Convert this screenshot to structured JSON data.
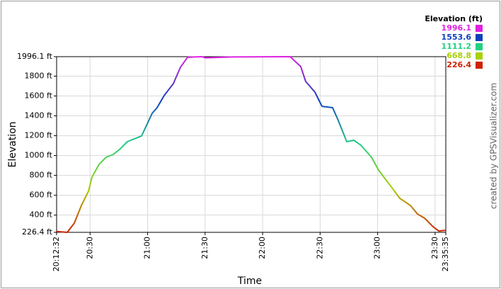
{
  "chart_data": {
    "type": "line",
    "x_label": "Time",
    "y_label": "Elevation",
    "credit": "created by GPSVisualizer.com",
    "legend_title": "Elevation (ft)",
    "color_scale": [
      {
        "value": 1996.1,
        "color": "#e020e0"
      },
      {
        "value": 1553.6,
        "color": "#1040c0"
      },
      {
        "value": 1111.2,
        "color": "#20d080"
      },
      {
        "value": 668.8,
        "color": "#a8d000"
      },
      {
        "value": 226.4,
        "color": "#d02000"
      }
    ],
    "x": [
      "20:12:32",
      "20:18:04",
      "20:21:46",
      "20:25:27",
      "20:29:09",
      "20:31:00",
      "20:34:41",
      "20:38:23",
      "20:42:04",
      "20:45:46",
      "20:49:27",
      "20:53:09",
      "20:56:50",
      "20:59:47",
      "21:02:22",
      "21:04:57",
      "21:08:39",
      "21:13:27",
      "21:17:08",
      "21:20:50",
      "21:28:13",
      "21:30:04",
      "21:44:50",
      "22:14:22",
      "22:19:54",
      "22:22:29",
      "22:27:17",
      "22:30:58",
      "22:36:31",
      "22:39:28",
      "22:43:54",
      "22:47:35",
      "22:51:17",
      "22:56:49",
      "23:00:30",
      "23:06:03",
      "23:11:35",
      "23:17:07",
      "23:20:49",
      "23:24:30",
      "23:28:56",
      "23:31:53",
      "23:35:35"
    ],
    "values": [
      235,
      226.4,
      319,
      497,
      640,
      783,
      911,
      983,
      1011,
      1068,
      1140,
      1168,
      1197,
      1318,
      1425,
      1482,
      1604,
      1725,
      1890,
      1990,
      1996.1,
      1985,
      1993,
      1996,
      1896,
      1746,
      1639,
      1496,
      1482,
      1354,
      1140,
      1154,
      1104,
      983,
      854,
      712,
      569,
      497,
      411,
      369,
      283,
      240,
      247
    ],
    "xlim": [
      "20:12:32",
      "23:35:35"
    ],
    "xticks": [
      "20:12:32",
      "20:30",
      "21:00",
      "21:30",
      "22:00",
      "22:30",
      "23:00",
      "23:30",
      "23:35:35"
    ],
    "ylim": [
      226.4,
      1996.1
    ],
    "yticks": [
      {
        "value": 226.4,
        "label": "226.4 ft"
      },
      {
        "value": 400,
        "label": "400 ft"
      },
      {
        "value": 600,
        "label": "600 ft"
      },
      {
        "value": 800,
        "label": "800 ft"
      },
      {
        "value": 1000,
        "label": "1000 ft"
      },
      {
        "value": 1200,
        "label": "1200 ft"
      },
      {
        "value": 1400,
        "label": "1400 ft"
      },
      {
        "value": 1600,
        "label": "1600 ft"
      },
      {
        "value": 1800,
        "label": "1800 ft"
      },
      {
        "value": 1996.1,
        "label": "1996.1 ft"
      }
    ],
    "grid": true
  }
}
